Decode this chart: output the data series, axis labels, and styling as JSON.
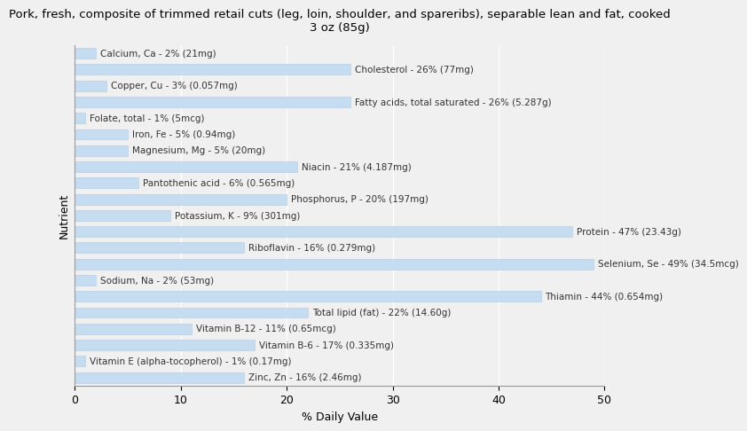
{
  "title": "Pork, fresh, composite of trimmed retail cuts (leg, loin, shoulder, and spareribs), separable lean and fat, cooked\n3 oz (85g)",
  "xlabel": "% Daily Value",
  "ylabel": "Nutrient",
  "xlim": [
    0,
    50
  ],
  "xticks": [
    0,
    10,
    20,
    30,
    40,
    50
  ],
  "bar_color": "#c6dcf0",
  "bar_edge_color": "#b8d0e8",
  "background_color": "#f0f0f0",
  "text_color": "#333333",
  "nutrients": [
    "Calcium, Ca - 2% (21mg)",
    "Cholesterol - 26% (77mg)",
    "Copper, Cu - 3% (0.057mg)",
    "Fatty acids, total saturated - 26% (5.287g)",
    "Folate, total - 1% (5mcg)",
    "Iron, Fe - 5% (0.94mg)",
    "Magnesium, Mg - 5% (20mg)",
    "Niacin - 21% (4.187mg)",
    "Pantothenic acid - 6% (0.565mg)",
    "Phosphorus, P - 20% (197mg)",
    "Potassium, K - 9% (301mg)",
    "Protein - 47% (23.43g)",
    "Riboflavin - 16% (0.279mg)",
    "Selenium, Se - 49% (34.5mcg)",
    "Sodium, Na - 2% (53mg)",
    "Thiamin - 44% (0.654mg)",
    "Total lipid (fat) - 22% (14.60g)",
    "Vitamin B-12 - 11% (0.65mcg)",
    "Vitamin B-6 - 17% (0.335mg)",
    "Vitamin E (alpha-tocopherol) - 1% (0.17mg)",
    "Zinc, Zn - 16% (2.46mg)"
  ],
  "values": [
    2,
    26,
    3,
    26,
    1,
    5,
    5,
    21,
    6,
    20,
    9,
    47,
    16,
    49,
    2,
    44,
    22,
    11,
    17,
    1,
    16
  ],
  "label_fontsize": 7.5,
  "bar_height": 0.65,
  "title_fontsize": 9.5,
  "axis_label_fontsize": 9
}
